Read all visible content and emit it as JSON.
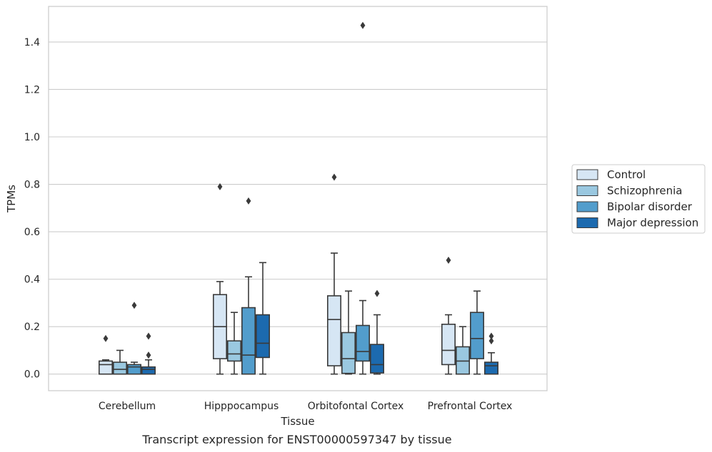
{
  "caption": "Transcript expression for ENST00000597347 by tissue",
  "chart_data": {
    "type": "box",
    "title": "",
    "xlabel": "Tissue",
    "ylabel": "TPMs",
    "ylim": [
      -0.07,
      1.55
    ],
    "yticks": [
      0.0,
      0.2,
      0.4,
      0.6,
      0.8,
      1.0,
      1.2,
      1.4
    ],
    "ytick_labels": [
      "0.0",
      "0.2",
      "0.4",
      "0.6",
      "0.8",
      "1.0",
      "1.2",
      "1.4"
    ],
    "grid": "horizontal",
    "legend_position": "right",
    "categories": [
      "Cerebellum",
      "Hipppocampus",
      "Orbitofontal Cortex",
      "Prefrontal Cortex"
    ],
    "series": [
      {
        "name": "Control",
        "color": "#d6e6f4",
        "boxes": [
          {
            "whislo": 0.0,
            "q1": 0.0,
            "med": 0.04,
            "q3": 0.055,
            "whishi": 0.06,
            "fliers": [
              0.15
            ]
          },
          {
            "whislo": 0.0,
            "q1": 0.065,
            "med": 0.2,
            "q3": 0.335,
            "whishi": 0.39,
            "fliers": [
              0.79
            ]
          },
          {
            "whislo": 0.0,
            "q1": 0.035,
            "med": 0.23,
            "q3": 0.33,
            "whishi": 0.51,
            "fliers": [
              0.83
            ]
          },
          {
            "whislo": 0.0,
            "q1": 0.04,
            "med": 0.1,
            "q3": 0.21,
            "whishi": 0.25,
            "fliers": [
              0.48
            ]
          }
        ]
      },
      {
        "name": "Schizophrenia",
        "color": "#9ac8e0",
        "boxes": [
          {
            "whislo": 0.0,
            "q1": 0.0,
            "med": 0.02,
            "q3": 0.05,
            "whishi": 0.1,
            "fliers": []
          },
          {
            "whislo": 0.0,
            "q1": 0.055,
            "med": 0.085,
            "q3": 0.14,
            "whishi": 0.26,
            "fliers": []
          },
          {
            "whislo": 0.0,
            "q1": 0.003,
            "med": 0.065,
            "q3": 0.175,
            "whishi": 0.35,
            "fliers": []
          },
          {
            "whislo": 0.0,
            "q1": 0.0,
            "med": 0.055,
            "q3": 0.115,
            "whishi": 0.2,
            "fliers": []
          }
        ]
      },
      {
        "name": "Bipolar disorder",
        "color": "#529dcc",
        "boxes": [
          {
            "whislo": 0.0,
            "q1": 0.0,
            "med": 0.03,
            "q3": 0.04,
            "whishi": 0.05,
            "fliers": [
              0.29
            ]
          },
          {
            "whislo": 0.0,
            "q1": 0.0,
            "med": 0.08,
            "q3": 0.28,
            "whishi": 0.41,
            "fliers": [
              0.73
            ]
          },
          {
            "whislo": 0.0,
            "q1": 0.055,
            "med": 0.095,
            "q3": 0.205,
            "whishi": 0.31,
            "fliers": [
              1.47
            ]
          },
          {
            "whislo": 0.0,
            "q1": 0.065,
            "med": 0.15,
            "q3": 0.26,
            "whishi": 0.35,
            "fliers": []
          }
        ]
      },
      {
        "name": "Major depression",
        "color": "#1c6aaf",
        "boxes": [
          {
            "whislo": 0.0,
            "q1": 0.0,
            "med": 0.02,
            "q3": 0.03,
            "whishi": 0.06,
            "fliers": [
              0.08,
              0.16
            ]
          },
          {
            "whislo": 0.0,
            "q1": 0.07,
            "med": 0.13,
            "q3": 0.25,
            "whishi": 0.47,
            "fliers": []
          },
          {
            "whislo": 0.0,
            "q1": 0.005,
            "med": 0.04,
            "q3": 0.125,
            "whishi": 0.25,
            "fliers": [
              0.34
            ]
          },
          {
            "whislo": 0.0,
            "q1": 0.0,
            "med": 0.035,
            "q3": 0.05,
            "whishi": 0.09,
            "fliers": [
              0.14,
              0.16
            ]
          }
        ]
      }
    ]
  }
}
